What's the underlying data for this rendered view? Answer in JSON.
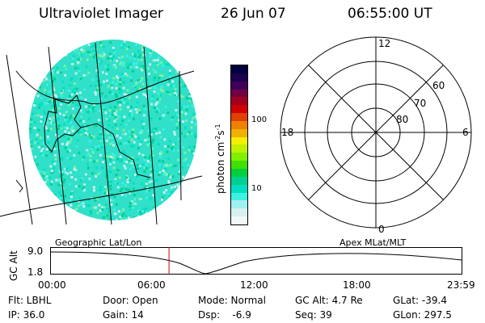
{
  "header": {
    "title": "Ultraviolet Imager",
    "date": "26 Jun 07",
    "time": "06:55:00 UT"
  },
  "colorbar": {
    "unit_label": "photon cm-2s-1",
    "unit_prefix": "photon cm",
    "unit_exp1": "-2",
    "unit_mid": "s",
    "unit_exp2": "-1",
    "ticks": [
      "100",
      "10"
    ],
    "colors": [
      "#000040",
      "#1a0050",
      "#40005a",
      "#700040",
      "#a00020",
      "#d00000",
      "#e04000",
      "#f08000",
      "#f0b000",
      "#f0f000",
      "#c0f000",
      "#80f000",
      "#40e000",
      "#00d040",
      "#00d090",
      "#00e0c0",
      "#40f0e0",
      "#a0f0f0",
      "#d8f0f0",
      "#f0f8f8"
    ]
  },
  "polar": {
    "mlt_labels": {
      "top": "12",
      "left": "18",
      "right": "6",
      "bottom": "0"
    },
    "lat_labels": [
      "60",
      "70",
      "80"
    ]
  },
  "timeline": {
    "ylabel": "GC Alt",
    "ymax": "9.0",
    "ymin": "1.8",
    "left_title": "Geographic Lat/Lon",
    "right_title": "Apex MLat/MLT",
    "xticks": [
      "00:00",
      "06:00",
      "12:00",
      "18:00",
      "23:59"
    ],
    "marker_time_hours": 6.9167
  },
  "status": {
    "col1": {
      "flt": "Flt: LBHL",
      "ip": "IP: 36.0"
    },
    "col2": {
      "door": "Door: Open",
      "gain": "Gain: 14"
    },
    "col3": {
      "mode": "Mode: Normal",
      "dsp": "Dsp:    -6.9"
    },
    "col4": {
      "gcalt": "GC Alt: 4.7 Re",
      "seq": "Seq: 39"
    },
    "col5": {
      "glat": "GLat: -39.4",
      "glon": "GLon: 297.5"
    }
  }
}
